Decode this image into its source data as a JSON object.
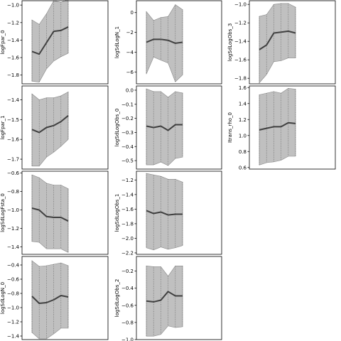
{
  "figure": {
    "background": "#ffffff",
    "band_color": "#c0c0c0",
    "line_color": "#404040",
    "grid": "dotted vertical lines at x positions"
  },
  "chart_data": [
    {
      "type": "line",
      "ylabel": "logFpar_0",
      "x": [
        0,
        1,
        2,
        3,
        4,
        5
      ],
      "ylim": [
        -1.9,
        -0.95
      ],
      "yticks": [
        -1.8,
        -1.6,
        -1.4,
        -1.2,
        -1.0
      ],
      "ytick_labels": [
        "−1.8",
        "−1.6",
        "−1.4",
        "−1.2",
        "−1.0"
      ],
      "median": [
        -1.53,
        -1.56,
        -1.43,
        -1.3,
        -1.29,
        -1.25
      ],
      "upper": [
        -1.17,
        -1.22,
        -1.1,
        -0.95,
        -0.97,
        -0.93
      ],
      "lower": [
        -1.87,
        -1.88,
        -1.73,
        -1.64,
        -1.59,
        -1.55
      ]
    },
    {
      "type": "line",
      "ylabel": "logSdLogN_1",
      "x": [
        0,
        1,
        2,
        3,
        4,
        5
      ],
      "ylim": [
        -7.2,
        1.2
      ],
      "yticks": [
        -6,
        -4,
        -2,
        0
      ],
      "ytick_labels": [
        "−6",
        "−4",
        "−2",
        "0"
      ],
      "median": [
        -3.0,
        -2.7,
        -2.7,
        -2.8,
        -3.1,
        -3.0
      ],
      "upper": [
        0.1,
        -0.8,
        -0.5,
        -0.4,
        0.8,
        0.3
      ],
      "lower": [
        -6.2,
        -4.5,
        -4.8,
        -5.1,
        -7.0,
        -6.3
      ]
    },
    {
      "type": "line",
      "ylabel": "logSdLogObs_3",
      "x": [
        0,
        1,
        2,
        3,
        4,
        5
      ],
      "ylim": [
        -1.86,
        -0.96
      ],
      "yticks": [
        -1.8,
        -1.6,
        -1.4,
        -1.2,
        -1.0
      ],
      "ytick_labels": [
        "−1.8",
        "−1.6",
        "−1.4",
        "−1.2",
        "−1.0"
      ],
      "median": [
        -1.49,
        -1.44,
        -1.31,
        -1.3,
        -1.29,
        -1.31
      ],
      "upper": [
        -1.13,
        -1.11,
        -1.0,
        -0.99,
        -0.99,
        -1.03
      ],
      "lower": [
        -1.85,
        -1.76,
        -1.62,
        -1.61,
        -1.58,
        -1.58
      ]
    },
    {
      "type": "line",
      "ylabel": "logFpar_1",
      "x": [
        0,
        1,
        2,
        3,
        4,
        5
      ],
      "ylim": [
        -1.75,
        -1.33
      ],
      "yticks": [
        -1.7,
        -1.6,
        -1.5,
        -1.4
      ],
      "ytick_labels": [
        "−1.7",
        "−1.6",
        "−1.5",
        "−1.4"
      ],
      "median": [
        -1.55,
        -1.565,
        -1.54,
        -1.53,
        -1.51,
        -1.48
      ],
      "upper": [
        -1.37,
        -1.4,
        -1.39,
        -1.39,
        -1.38,
        -1.36
      ],
      "lower": [
        -1.735,
        -1.735,
        -1.69,
        -1.665,
        -1.635,
        -1.6
      ]
    },
    {
      "type": "line",
      "ylabel": "logSdLogObs_0",
      "x": [
        0,
        1,
        2,
        3,
        4,
        5
      ],
      "ylim": [
        -0.56,
        0.03
      ],
      "yticks": [
        -0.5,
        -0.4,
        -0.3,
        -0.2,
        -0.1,
        0.0
      ],
      "ytick_labels": [
        "−0.5",
        "−0.4",
        "−0.3",
        "−0.2",
        "−0.1",
        "0.0"
      ],
      "median": [
        -0.255,
        -0.265,
        -0.255,
        -0.285,
        -0.245,
        -0.245
      ],
      "upper": [
        0.01,
        -0.01,
        -0.01,
        -0.05,
        -0.01,
        -0.02
      ],
      "lower": [
        -0.53,
        -0.53,
        -0.51,
        -0.535,
        -0.485,
        -0.475
      ]
    },
    {
      "type": "line",
      "ylabel": "Itrans_rho_0",
      "x": [
        0,
        1,
        2,
        3,
        4,
        5
      ],
      "ylim": [
        0.58,
        1.62
      ],
      "yticks": [
        0.6,
        0.8,
        1.0,
        1.2,
        1.4,
        1.6
      ],
      "ytick_labels": [
        "0.6",
        "0.8",
        "1.0",
        "1.2",
        "1.4",
        "1.6"
      ],
      "median": [
        1.07,
        1.09,
        1.11,
        1.11,
        1.16,
        1.15
      ],
      "upper": [
        1.51,
        1.53,
        1.55,
        1.53,
        1.59,
        1.58
      ],
      "lower": [
        0.63,
        0.66,
        0.67,
        0.69,
        0.74,
        0.74
      ]
    },
    {
      "type": "line",
      "ylabel": "logSdLogFsta_0",
      "x": [
        0,
        1,
        2,
        3,
        4,
        5
      ],
      "ylim": [
        -1.48,
        -0.58
      ],
      "yticks": [
        -1.4,
        -1.2,
        -1.0,
        -0.8,
        -0.6
      ],
      "ytick_labels": [
        "−1.4",
        "−1.2",
        "−1.0",
        "−0.8",
        "−0.6"
      ],
      "median": [
        -0.98,
        -1.0,
        -1.07,
        -1.08,
        -1.08,
        -1.12
      ],
      "upper": [
        -0.62,
        -0.65,
        -0.71,
        -0.73,
        -0.73,
        -0.77
      ],
      "lower": [
        -1.34,
        -1.35,
        -1.42,
        -1.42,
        -1.42,
        -1.46
      ]
    },
    {
      "type": "line",
      "ylabel": "logSdLogObs_1",
      "x": [
        0,
        1,
        2,
        3,
        4,
        5
      ],
      "ylim": [
        -2.22,
        -1.08
      ],
      "yticks": [
        -2.2,
        -2.0,
        -1.8,
        -1.6,
        -1.4,
        -1.2
      ],
      "ytick_labels": [
        "−2.2",
        "−2.0",
        "−1.8",
        "−1.6",
        "−1.4",
        "−1.2"
      ],
      "median": [
        -1.62,
        -1.66,
        -1.64,
        -1.68,
        -1.67,
        -1.67
      ],
      "upper": [
        -1.11,
        -1.13,
        -1.15,
        -1.19,
        -1.19,
        -1.23
      ],
      "lower": [
        -2.13,
        -2.16,
        -2.12,
        -2.15,
        -2.13,
        -2.1
      ]
    },
    {
      "type": "line",
      "ylabel": "logSdLogN_0",
      "x": [
        0,
        1,
        2,
        3,
        4,
        5
      ],
      "ylim": [
        -1.45,
        -0.28
      ],
      "yticks": [
        -1.4,
        -1.2,
        -1.0,
        -0.8,
        -0.6,
        -0.4
      ],
      "ytick_labels": [
        "−1.4",
        "−1.2",
        "−1.0",
        "−0.8",
        "−0.6",
        "−0.4"
      ],
      "median": [
        -0.84,
        -0.94,
        -0.93,
        -0.89,
        -0.83,
        -0.85
      ],
      "upper": [
        -0.34,
        -0.42,
        -0.41,
        -0.39,
        -0.37,
        -0.41
      ],
      "lower": [
        -1.35,
        -1.44,
        -1.44,
        -1.37,
        -1.29,
        -1.29
      ]
    },
    {
      "type": "line",
      "ylabel": "logSdLogObs_2",
      "x": [
        0,
        1,
        2,
        3,
        4,
        5
      ],
      "ylim": [
        -1.0,
        -0.03
      ],
      "yticks": [
        -1.0,
        -0.8,
        -0.6,
        -0.4,
        -0.2
      ],
      "ytick_labels": [
        "−1.0",
        "−0.8",
        "−0.6",
        "−0.4",
        "−0.2"
      ],
      "median": [
        -0.55,
        -0.56,
        -0.54,
        -0.44,
        -0.49,
        -0.49
      ],
      "upper": [
        -0.14,
        -0.15,
        -0.15,
        -0.26,
        -0.14,
        -0.14
      ],
      "lower": [
        -0.96,
        -0.96,
        -0.94,
        -0.84,
        -0.86,
        -0.85
      ]
    }
  ]
}
